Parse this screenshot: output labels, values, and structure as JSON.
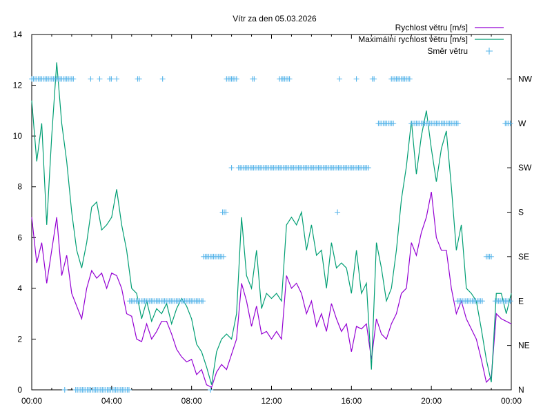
{
  "chart_data": {
    "type": "line",
    "title": "Vítr za den 05.03.2026",
    "xlabel": "",
    "ylabel": "",
    "x_unit": "hours",
    "xlim": [
      0,
      24
    ],
    "ylim": [
      0,
      14
    ],
    "y_ticks": [
      0,
      2,
      4,
      6,
      8,
      10,
      12,
      14
    ],
    "x_ticks": [
      {
        "value": 0,
        "label": "00:00"
      },
      {
        "value": 4,
        "label": "04:00"
      },
      {
        "value": 8,
        "label": "08:00"
      },
      {
        "value": 12,
        "label": "12:00"
      },
      {
        "value": 16,
        "label": "16:00"
      },
      {
        "value": 20,
        "label": "20:00"
      },
      {
        "value": 24,
        "label": "00:00"
      }
    ],
    "y2_ticks": [
      "N",
      "NE",
      "E",
      "SE",
      "S",
      "SW",
      "W",
      "NW"
    ],
    "legend_position": "top-right",
    "series": [
      {
        "name": "Rychlost větru [m/s]",
        "color": "#9400d3",
        "step_hours": 0.25,
        "values": [
          6.8,
          5.0,
          5.8,
          4.2,
          5.5,
          6.8,
          4.5,
          5.3,
          3.8,
          3.3,
          2.8,
          4.0,
          4.7,
          4.4,
          4.6,
          4.0,
          4.6,
          4.5,
          4.0,
          3.0,
          2.9,
          2.0,
          1.9,
          2.6,
          2.0,
          2.3,
          2.7,
          2.7,
          2.2,
          1.6,
          1.3,
          1.1,
          1.2,
          0.6,
          0.8,
          0.2,
          0.1,
          0.7,
          1.0,
          0.8,
          1.4,
          2.0,
          4.2,
          3.5,
          2.5,
          3.3,
          2.2,
          2.3,
          2.0,
          2.3,
          2.0,
          4.5,
          4.0,
          4.2,
          3.8,
          3.0,
          3.5,
          2.5,
          3.0,
          2.3,
          3.4,
          2.8,
          2.3,
          2.6,
          1.5,
          2.5,
          2.4,
          2.6,
          1.2,
          2.8,
          2.2,
          2.0,
          2.6,
          3.0,
          3.8,
          4.0,
          5.8,
          5.3,
          6.2,
          6.8,
          7.8,
          6.0,
          5.5,
          5.5,
          4.0,
          3.0,
          3.5,
          2.8,
          2.4,
          2.0,
          1.2,
          0.3,
          0.5,
          3.0,
          2.8,
          2.7,
          2.6
        ]
      },
      {
        "name": "Maximální rychlost větru [m/s]",
        "color": "#009e73",
        "step_hours": 0.25,
        "values": [
          11.4,
          9.0,
          10.5,
          6.5,
          10.0,
          12.9,
          10.5,
          9.0,
          7.0,
          5.5,
          4.8,
          5.8,
          7.2,
          7.4,
          6.3,
          6.5,
          6.8,
          7.9,
          6.5,
          5.5,
          4.0,
          3.8,
          2.8,
          3.5,
          2.7,
          3.2,
          3.0,
          3.4,
          2.6,
          3.2,
          3.6,
          3.3,
          2.8,
          1.8,
          1.5,
          0.9,
          0.2,
          1.5,
          2.0,
          2.2,
          2.0,
          3.0,
          6.8,
          4.5,
          4.0,
          5.5,
          3.2,
          3.8,
          3.6,
          3.8,
          3.5,
          6.5,
          6.8,
          6.5,
          7.0,
          5.5,
          6.5,
          5.3,
          5.5,
          4.0,
          5.8,
          4.8,
          5.0,
          4.8,
          3.8,
          5.5,
          3.8,
          4.2,
          0.8,
          5.8,
          4.8,
          3.5,
          4.0,
          5.5,
          7.5,
          8.8,
          10.6,
          8.5,
          10.0,
          11.0,
          9.5,
          8.2,
          9.5,
          10.2,
          8.0,
          5.5,
          6.5,
          4.0,
          3.8,
          3.5,
          2.4,
          1.2,
          0.3,
          3.8,
          3.8,
          3.0,
          3.8
        ]
      },
      {
        "name": "Směr větru",
        "color": "#56b4e9",
        "axis": "y2",
        "sample_minutes": 5,
        "runs": [
          {
            "from": 0.0,
            "to": 2.15,
            "dir": "NW"
          },
          {
            "from": 1.65,
            "to": 1.7,
            "dir": "N"
          },
          {
            "from": 2.2,
            "to": 4.9,
            "dir": "N"
          },
          {
            "from": 2.95,
            "to": 3.0,
            "dir": "NW"
          },
          {
            "from": 3.4,
            "to": 3.45,
            "dir": "NW"
          },
          {
            "from": 3.9,
            "to": 4.05,
            "dir": "NW"
          },
          {
            "from": 4.25,
            "to": 4.3,
            "dir": "NW"
          },
          {
            "from": 5.3,
            "to": 5.45,
            "dir": "NW"
          },
          {
            "from": 6.55,
            "to": 6.6,
            "dir": "NW"
          },
          {
            "from": 4.9,
            "to": 8.6,
            "dir": "E"
          },
          {
            "from": 8.6,
            "to": 9.6,
            "dir": "SE"
          },
          {
            "from": 8.95,
            "to": 9.0,
            "dir": "N"
          },
          {
            "from": 9.55,
            "to": 9.75,
            "dir": "S"
          },
          {
            "from": 9.75,
            "to": 10.3,
            "dir": "NW"
          },
          {
            "from": 10.0,
            "to": 10.05,
            "dir": "SW"
          },
          {
            "from": 10.35,
            "to": 16.9,
            "dir": "SW"
          },
          {
            "from": 11.05,
            "to": 11.15,
            "dir": "NW"
          },
          {
            "from": 12.4,
            "to": 12.9,
            "dir": "NW"
          },
          {
            "from": 15.3,
            "to": 15.35,
            "dir": "S"
          },
          {
            "from": 15.4,
            "to": 15.45,
            "dir": "NW"
          },
          {
            "from": 16.25,
            "to": 16.3,
            "dir": "NW"
          },
          {
            "from": 17.05,
            "to": 17.15,
            "dir": "NW"
          },
          {
            "from": 17.35,
            "to": 18.1,
            "dir": "W"
          },
          {
            "from": 18.0,
            "to": 18.95,
            "dir": "NW"
          },
          {
            "from": 19.0,
            "to": 21.4,
            "dir": "W"
          },
          {
            "from": 21.3,
            "to": 22.6,
            "dir": "E"
          },
          {
            "from": 22.75,
            "to": 23.0,
            "dir": "SE"
          },
          {
            "from": 23.2,
            "to": 24.0,
            "dir": "E"
          },
          {
            "from": 23.7,
            "to": 24.0,
            "dir": "W"
          }
        ]
      }
    ]
  }
}
